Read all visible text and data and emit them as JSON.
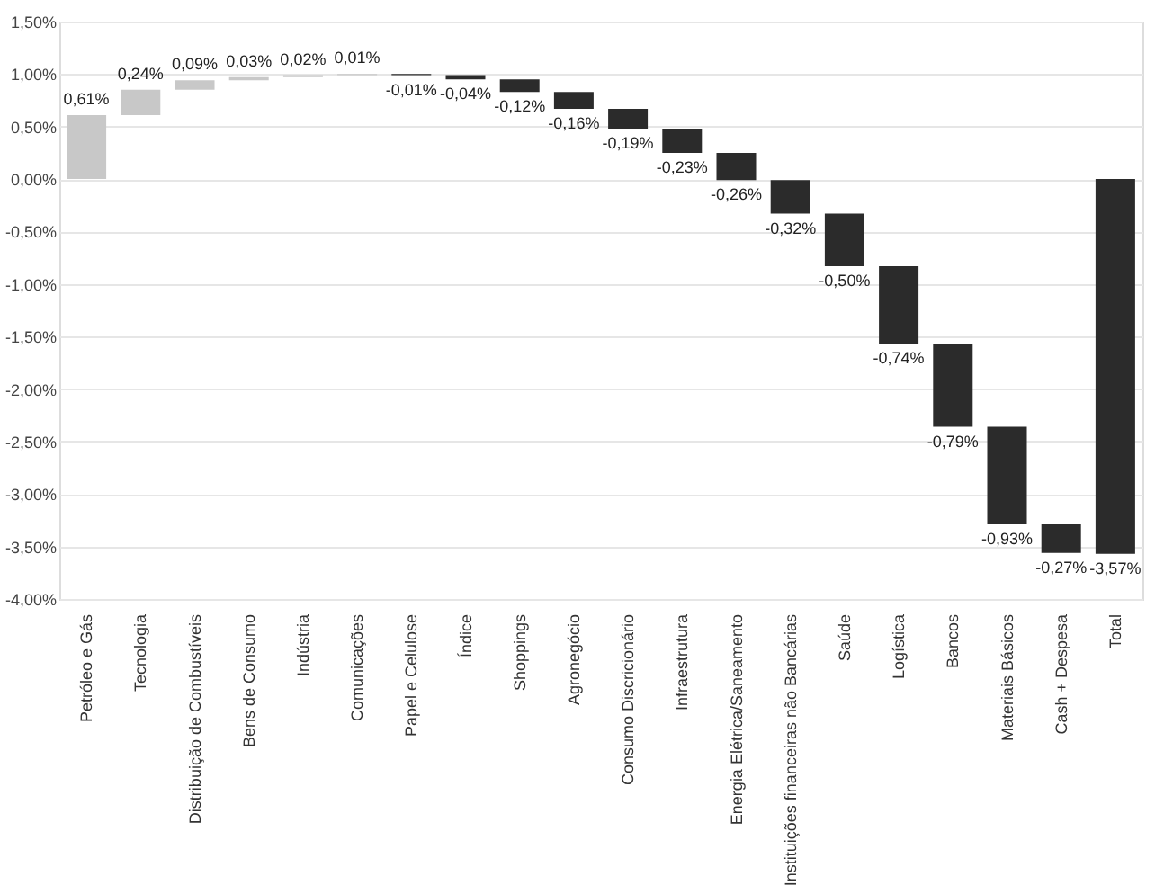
{
  "chart_data": {
    "type": "bar",
    "categories": [
      "Petróleo e Gás",
      "Tecnologia",
      "Distribuição de Combustíveis",
      "Bens de Consumo",
      "Indústria",
      "Comunicações",
      "Papel e Celulose",
      "Índice",
      "Shoppings",
      "Agronegócio",
      "Consumo Discricionário",
      "Infraestrutura",
      "Energia Elétrica/Saneamento",
      "Instituições financeiras não Bancárias",
      "Saúde",
      "Logística",
      "Bancos",
      "Materiais Básicos",
      "Cash + Despesa",
      "Total"
    ],
    "values": [
      0.61,
      0.24,
      0.09,
      0.03,
      0.02,
      0.01,
      -0.01,
      -0.04,
      -0.12,
      -0.16,
      -0.19,
      -0.23,
      -0.26,
      -0.32,
      -0.5,
      -0.74,
      -0.79,
      -0.93,
      -0.27,
      -3.57
    ],
    "base": [
      0,
      0.61,
      0.85,
      0.94,
      0.97,
      0.99,
      1.0,
      0.99,
      0.95,
      0.83,
      0.67,
      0.48,
      0.25,
      -0.01,
      -0.33,
      -0.83,
      -1.57,
      -2.36,
      -3.29,
      0
    ],
    "colors": [
      "#c8c8c8",
      "#c8c8c8",
      "#c8c8c8",
      "#c8c8c8",
      "#c8c8c8",
      "#c8c8c8",
      "#2b2b2b",
      "#2b2b2b",
      "#2b2b2b",
      "#2b2b2b",
      "#2b2b2b",
      "#2b2b2b",
      "#2b2b2b",
      "#2b2b2b",
      "#2b2b2b",
      "#2b2b2b",
      "#2b2b2b",
      "#2b2b2b",
      "#2b2b2b",
      "#2b2b2b"
    ],
    "value_labels": [
      "0,61%",
      "0,24%",
      "0,09%",
      "0,03%",
      "0,02%",
      "0,01%",
      "-0,01%",
      "-0,04%",
      "-0,12%",
      "-0,16%",
      "-0,19%",
      "-0,23%",
      "-0,26%",
      "-0,32%",
      "-0,50%",
      "-0,74%",
      "-0,79%",
      "-0,93%",
      "-0,27%",
      "-3,57%"
    ],
    "ylim": [
      -4.0,
      1.5
    ],
    "yticks": [
      {
        "value": 1.5,
        "label": "1,50%"
      },
      {
        "value": 1.0,
        "label": "1,00%"
      },
      {
        "value": 0.5,
        "label": "0,50%"
      },
      {
        "value": 0,
        "label": "0,00%"
      },
      {
        "value": -0.5,
        "label": "-0,50%"
      },
      {
        "value": -1.0,
        "label": "-1,00%"
      },
      {
        "value": -1.5,
        "label": "-1,50%"
      },
      {
        "value": -2.0,
        "label": "-2,00%"
      },
      {
        "value": -2.5,
        "label": "-2,50%"
      },
      {
        "value": -3.0,
        "label": "-3,00%"
      },
      {
        "value": -3.5,
        "label": "-3,50%"
      },
      {
        "value": -4.0,
        "label": "-4,00%"
      }
    ],
    "grid": "y"
  }
}
